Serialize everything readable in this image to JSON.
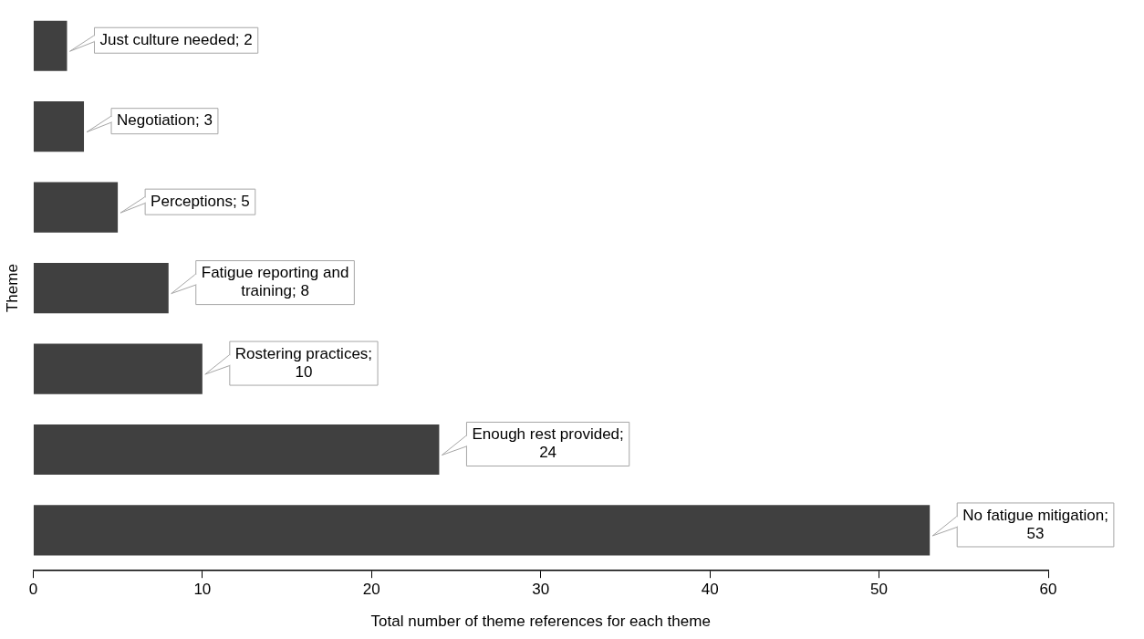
{
  "chart_data": {
    "type": "bar",
    "orientation": "horizontal",
    "xlabel": "Total number of theme references for each theme",
    "ylabel": "Theme",
    "categories": [
      null,
      null,
      null,
      null,
      null,
      null,
      null
    ],
    "values": [
      2,
      3,
      5,
      8,
      10,
      24,
      53
    ],
    "value_labels": [
      "Just culture needed; 2",
      "Negotiation; 3",
      "Perceptions; 5",
      "Fatigue reporting and training; 8",
      "Rostering practices; 10",
      "Enough rest provided; 24",
      "No fatigue mitigation; 53"
    ],
    "color": "#404040",
    "xlim": [
      0,
      60
    ],
    "xticks": [
      0,
      10,
      20,
      30,
      40,
      50,
      60
    ],
    "grid": false,
    "legend": false,
    "tick_labels": "x"
  }
}
